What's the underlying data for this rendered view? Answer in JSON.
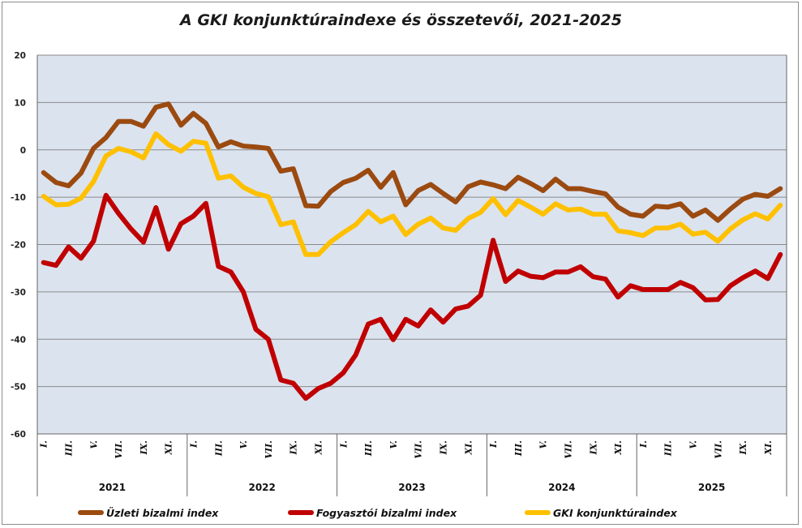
{
  "chart_data": {
    "type": "line",
    "title": "A GKI konjunktúraindexe és összetevői, 2021-2025",
    "ylim": [
      -60,
      20
    ],
    "yticks": [
      20,
      10,
      0,
      -10,
      -20,
      -30,
      -40,
      -50,
      -60
    ],
    "grid": true,
    "legend_position": "bottom",
    "month_labels": [
      "I.",
      "III.",
      "V.",
      "VII.",
      "IX.",
      "XI."
    ],
    "years": [
      "2021",
      "2022",
      "2023",
      "2024",
      "2025"
    ],
    "series": [
      {
        "name": "Üzleti bizalmi index",
        "legend_label": "Üzleti bizalmi index",
        "color": "#9b4a10",
        "values": [
          -4.8,
          -6.9,
          -7.6,
          -4.9,
          0.3,
          2.6,
          6.0,
          6.0,
          5.0,
          9.0,
          9.7,
          5.2,
          7.7,
          5.6,
          0.6,
          1.7,
          0.8,
          0.6,
          0.3,
          -4.5,
          -4.0,
          -11.8,
          -11.9,
          -8.8,
          -6.9,
          -6.0,
          -4.3,
          -7.9,
          -4.8,
          -11.6,
          -8.6,
          -7.3,
          -9.2,
          -11.0,
          -7.8,
          -6.8,
          -7.4,
          -8.2,
          -5.8,
          -7.1,
          -8.6,
          -6.2,
          -8.2,
          -8.2,
          -8.8,
          -9.3,
          -12.1,
          -13.6,
          -14.0,
          -11.9,
          -12.1,
          -11.4,
          -14.0,
          -12.7,
          -14.9,
          -12.5,
          -10.4,
          -9.4,
          -9.8,
          -8.2
        ]
      },
      {
        "name": "Fogyasztói bizalmi index",
        "legend_label": "Fogyasztói bizalmi index",
        "color": "#c00000",
        "values": [
          -23.8,
          -24.4,
          -20.5,
          -22.9,
          -19.3,
          -9.6,
          -13.4,
          -16.7,
          -19.5,
          -12.2,
          -21.0,
          -15.6,
          -14.0,
          -11.3,
          -24.6,
          -25.8,
          -30.0,
          -37.9,
          -40.0,
          -48.6,
          -49.3,
          -52.5,
          -50.4,
          -49.3,
          -47.1,
          -43.3,
          -36.8,
          -35.8,
          -40.1,
          -35.8,
          -37.2,
          -33.8,
          -36.4,
          -33.6,
          -33.0,
          -30.7,
          -19.1,
          -27.8,
          -25.6,
          -26.7,
          -27.0,
          -25.8,
          -25.8,
          -24.7,
          -26.8,
          -27.3,
          -31.1,
          -28.7,
          -29.5,
          -29.5,
          -29.5,
          -28.0,
          -29.1,
          -31.7,
          -31.6,
          -28.7,
          -27.0,
          -25.6,
          -27.2,
          -22.1
        ]
      },
      {
        "name": "GKI konjunktúraindex",
        "legend_label": "GKI konjunktúraindex",
        "color": "#ffc000",
        "values": [
          -9.8,
          -11.6,
          -11.5,
          -10.2,
          -6.7,
          -1.3,
          0.3,
          -0.4,
          -1.7,
          3.4,
          1.1,
          -0.3,
          1.8,
          1.4,
          -6.0,
          -5.5,
          -7.9,
          -9.2,
          -9.9,
          -15.8,
          -15.2,
          -22.1,
          -22.1,
          -19.4,
          -17.5,
          -15.8,
          -13.0,
          -15.2,
          -14.0,
          -17.9,
          -15.7,
          -14.4,
          -16.5,
          -17.0,
          -14.5,
          -13.2,
          -10.3,
          -13.7,
          -10.7,
          -12.1,
          -13.6,
          -11.4,
          -12.7,
          -12.5,
          -13.6,
          -13.6,
          -17.1,
          -17.5,
          -18.1,
          -16.5,
          -16.5,
          -15.7,
          -17.8,
          -17.4,
          -19.3,
          -16.7,
          -14.8,
          -13.5,
          -14.6,
          -11.7
        ]
      }
    ]
  }
}
